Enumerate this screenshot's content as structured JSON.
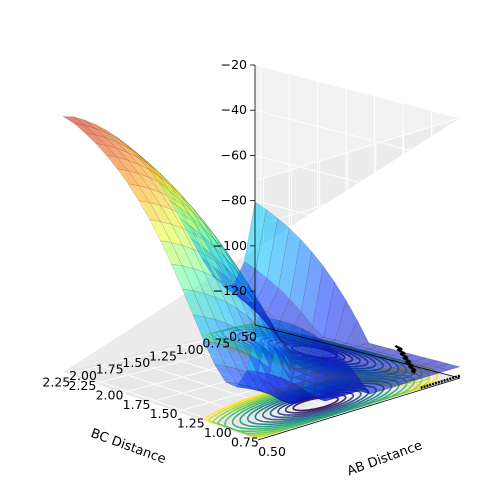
{
  "chart_data": {
    "type": "surface3d",
    "title": "",
    "xlabel": "AB Distance",
    "ylabel": "BC Distance",
    "zlabel": "",
    "ab_ticks": [
      "0.50",
      "0.75",
      "1.00",
      "1.25",
      "1.50",
      "1.75",
      "2.00",
      "2.25"
    ],
    "bc_ticks": [
      "0.50",
      "0.75",
      "1.00",
      "1.25",
      "1.50",
      "1.75",
      "2.00",
      "2.25"
    ],
    "z_ticks": [
      "−20",
      "−40",
      "−60",
      "−80",
      "−100",
      "−120"
    ],
    "ab_range": [
      0.5,
      2.3
    ],
    "bc_range": [
      0.5,
      2.3
    ],
    "z_range": [
      -135,
      -20
    ],
    "surface_colormap": "jet",
    "contour_colormap": "viridis",
    "energy_levels": [
      -120,
      -110,
      -100,
      -90,
      -80,
      -70,
      -60,
      -50,
      -40,
      -30
    ],
    "trajectory_color": "#000000"
  }
}
